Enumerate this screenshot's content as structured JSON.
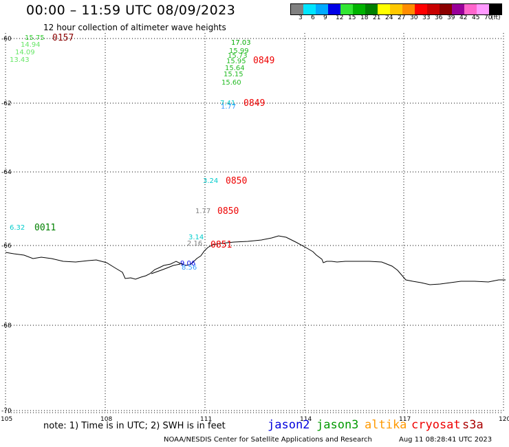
{
  "header": {
    "title": "00:00 – 11:59 UTC 08/09/2023",
    "subtitle": "12 hour collection of altimeter wave heights"
  },
  "scale": {
    "colors": [
      "#808080",
      "#00e5ff",
      "#00aaff",
      "#0000e6",
      "#33e633",
      "#00b300",
      "#008000",
      "#ffff00",
      "#ffc800",
      "#ff8c00",
      "#ff0000",
      "#c80000",
      "#8b0000",
      "#990099",
      "#ff66cc",
      "#ff99ff",
      "#000000"
    ],
    "labels": [
      "3",
      "6",
      "9",
      "12",
      "15",
      "18",
      "21",
      "24",
      "27",
      "30",
      "33",
      "36",
      "39",
      "42",
      "45",
      "70",
      "(ft)"
    ]
  },
  "map": {
    "lat_labels": [
      "-60",
      "-62",
      "-64",
      "-66",
      "-68",
      "-70"
    ],
    "lon_labels": [
      "105",
      "108",
      "111",
      "114",
      "117",
      "120"
    ]
  },
  "measurements": [
    {
      "value": "15.75",
      "color": "#33cc33"
    },
    {
      "value": "14.94",
      "color": "#66e666"
    },
    {
      "value": "14.09",
      "color": "#66e666"
    },
    {
      "value": "13.43",
      "color": "#66e666"
    },
    {
      "value": "17.03",
      "color": "#00aa00"
    },
    {
      "value": "15.99",
      "color": "#22bb22"
    },
    {
      "value": "15.73",
      "color": "#22bb22"
    },
    {
      "value": "15.95",
      "color": "#22bb22"
    },
    {
      "value": "15.64",
      "color": "#22bb22"
    },
    {
      "value": "15.15",
      "color": "#22bb22"
    },
    {
      "value": "15.60",
      "color": "#22bb22"
    },
    {
      "value": "7.41",
      "color": "#00cccc"
    },
    {
      "value": "1.77",
      "color": "#3399ff"
    },
    {
      "value": "3.24",
      "color": "#00cccc"
    },
    {
      "value": "1.77",
      "color": "#808080"
    },
    {
      "value": "6.32",
      "color": "#00cccc"
    },
    {
      "value": "3.14",
      "color": "#00cccc"
    },
    {
      "value": "2.16",
      "color": "#808080"
    },
    {
      "value": "9.06",
      "color": "#0000ee"
    },
    {
      "value": "8.56",
      "color": "#3399ff"
    }
  ],
  "times": [
    {
      "value": "0157",
      "color": "#8b0000"
    },
    {
      "value": "0849",
      "color": "#ee0000"
    },
    {
      "value": "0849",
      "color": "#ee0000"
    },
    {
      "value": "0850",
      "color": "#ee0000"
    },
    {
      "value": "0850",
      "color": "#ee0000"
    },
    {
      "value": "0011",
      "color": "#008000"
    },
    {
      "value": "0851",
      "color": "#ee0000"
    }
  ],
  "note": "note: 1) Time is in UTC; 2) SWH is in feet",
  "satellites": [
    {
      "name": "jason2",
      "color": "#0000dd"
    },
    {
      "name": "jason3",
      "color": "#009900"
    },
    {
      "name": "altika",
      "color": "#ff9900"
    },
    {
      "name": "cryosat",
      "color": "#ee0000"
    },
    {
      "name": "s3a",
      "color": "#aa0000"
    }
  ],
  "footer": {
    "credit": "NOAA/NESDIS Center for Satellite Applications and Research",
    "timestamp": "Aug 11 08:28:41 UTC 2023"
  }
}
